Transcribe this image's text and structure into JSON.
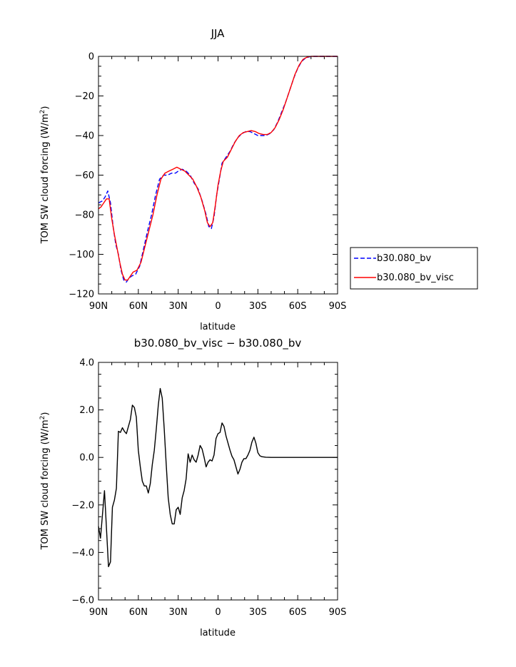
{
  "chart_data": [
    {
      "type": "line",
      "title": "JJA",
      "xlabel": "latitude",
      "ylabel_main": "TOM SW cloud forcing (W/m",
      "ylabel_sup": "2",
      "ylabel_close": ")",
      "xlim": [
        90,
        -90
      ],
      "ylim": [
        -120,
        0
      ],
      "x_ticks": [
        90,
        60,
        30,
        0,
        -30,
        -60,
        -90
      ],
      "x_tick_labels": [
        "90N",
        "60N",
        "30N",
        "0",
        "30S",
        "60S",
        "90S"
      ],
      "y_ticks": [
        -120,
        -100,
        -80,
        -60,
        -40,
        -20,
        0
      ],
      "y_tick_labels": [
        "−120",
        "−100",
        "−80",
        "−60",
        "−40",
        "−20",
        "0"
      ],
      "legend_position": "right",
      "series": [
        {
          "name": "b30.080_bv",
          "color": "#0000ff",
          "dash": "dashed",
          "points": [
            [
              90,
              -74
            ],
            [
              87,
              -73
            ],
            [
              85,
              -71
            ],
            [
              83,
              -68
            ],
            [
              81,
              -74
            ],
            [
              79,
              -86
            ],
            [
              77,
              -95
            ],
            [
              75,
              -100
            ],
            [
              73,
              -108
            ],
            [
              71,
              -113
            ],
            [
              69,
              -114
            ],
            [
              67,
              -112
            ],
            [
              65,
              -111
            ],
            [
              62,
              -110
            ],
            [
              59,
              -106
            ],
            [
              56,
              -97
            ],
            [
              53,
              -88
            ],
            [
              50,
              -80
            ],
            [
              47,
              -70
            ],
            [
              44,
              -62
            ],
            [
              41,
              -60
            ],
            [
              38,
              -60
            ],
            [
              35,
              -59
            ],
            [
              32,
              -59
            ],
            [
              30,
              -58
            ],
            [
              27,
              -57
            ],
            [
              24,
              -58
            ],
            [
              21,
              -60
            ],
            [
              18,
              -64
            ],
            [
              15,
              -67
            ],
            [
              12,
              -73
            ],
            [
              9,
              -80
            ],
            [
              7,
              -86
            ],
            [
              5,
              -87
            ],
            [
              3,
              -81
            ],
            [
              1,
              -70
            ],
            [
              -1,
              -62
            ],
            [
              -3,
              -54
            ],
            [
              -6,
              -51
            ],
            [
              -9,
              -48
            ],
            [
              -12,
              -44
            ],
            [
              -15,
              -41
            ],
            [
              -18,
              -39
            ],
            [
              -21,
              -38
            ],
            [
              -24,
              -38
            ],
            [
              -27,
              -39
            ],
            [
              -30,
              -40
            ],
            [
              -33,
              -40
            ],
            [
              -36,
              -40
            ],
            [
              -39,
              -39
            ],
            [
              -42,
              -37
            ],
            [
              -45,
              -33
            ],
            [
              -48,
              -28
            ],
            [
              -51,
              -23
            ],
            [
              -54,
              -17
            ],
            [
              -57,
              -11
            ],
            [
              -60,
              -6
            ],
            [
              -63,
              -2.5
            ],
            [
              -66,
              -0.8
            ],
            [
              -69,
              -0.2
            ],
            [
              -72,
              0
            ],
            [
              -80,
              0
            ],
            [
              -90,
              0
            ]
          ]
        },
        {
          "name": "b30.080_bv_visc",
          "color": "#ff0000",
          "dash": "solid",
          "points": [
            [
              90,
              -77
            ],
            [
              88,
              -76
            ],
            [
              86,
              -74
            ],
            [
              84,
              -72
            ],
            [
              82,
              -72
            ],
            [
              80,
              -82
            ],
            [
              78,
              -90
            ],
            [
              76,
              -97
            ],
            [
              74,
              -104
            ],
            [
              72,
              -110
            ],
            [
              70,
              -113
            ],
            [
              68,
              -113
            ],
            [
              66,
              -111
            ],
            [
              64,
              -109
            ],
            [
              61,
              -108
            ],
            [
              58,
              -104
            ],
            [
              55,
              -96
            ],
            [
              52,
              -88
            ],
            [
              49,
              -80
            ],
            [
              46,
              -70
            ],
            [
              43,
              -62
            ],
            [
              40,
              -59
            ],
            [
              37,
              -58
            ],
            [
              34,
              -57
            ],
            [
              31,
              -56
            ],
            [
              28,
              -57
            ],
            [
              25,
              -58
            ],
            [
              22,
              -60
            ],
            [
              19,
              -62
            ],
            [
              16,
              -66
            ],
            [
              13,
              -71
            ],
            [
              10,
              -78
            ],
            [
              8,
              -84
            ],
            [
              6,
              -86
            ],
            [
              4,
              -84
            ],
            [
              2,
              -75
            ],
            [
              0,
              -65
            ],
            [
              -2,
              -58
            ],
            [
              -4,
              -53
            ],
            [
              -7,
              -51
            ],
            [
              -10,
              -47
            ],
            [
              -13,
              -43
            ],
            [
              -16,
              -40
            ],
            [
              -19,
              -38.5
            ],
            [
              -22,
              -38
            ],
            [
              -25,
              -37.5
            ],
            [
              -28,
              -38
            ],
            [
              -31,
              -39
            ],
            [
              -34,
              -39.5
            ],
            [
              -37,
              -39.5
            ],
            [
              -40,
              -38.5
            ],
            [
              -43,
              -36
            ],
            [
              -46,
              -32
            ],
            [
              -49,
              -27
            ],
            [
              -52,
              -21
            ],
            [
              -55,
              -15
            ],
            [
              -58,
              -9
            ],
            [
              -61,
              -4.5
            ],
            [
              -64,
              -1.5
            ],
            [
              -67,
              -0.4
            ],
            [
              -70,
              0
            ],
            [
              -80,
              0
            ],
            [
              -90,
              0
            ]
          ]
        }
      ]
    },
    {
      "type": "line",
      "title": "b30.080_bv_visc − b30.080_bv",
      "xlabel": "latitude",
      "ylabel_main": "TOM SW cloud forcing (W/m",
      "ylabel_sup": "2",
      "ylabel_close": ")",
      "xlim": [
        90,
        -90
      ],
      "ylim": [
        -6,
        4
      ],
      "x_ticks": [
        90,
        60,
        30,
        0,
        -30,
        -60,
        -90
      ],
      "x_tick_labels": [
        "90N",
        "60N",
        "30N",
        "0",
        "30S",
        "60S",
        "90S"
      ],
      "y_ticks": [
        -6,
        -4,
        -2,
        0,
        2,
        4
      ],
      "y_tick_labels": [
        "−6.0",
        "−4.0",
        "−2.0",
        "0.0",
        "2.0",
        "4.0"
      ],
      "series": [
        {
          "color": "#000000",
          "dash": "solid",
          "points": [
            [
              90,
              -2.9
            ],
            [
              88.5,
              -3.4
            ],
            [
              87,
              -2.4
            ],
            [
              85.5,
              -1.4
            ],
            [
              84,
              -3.0
            ],
            [
              82.5,
              -4.6
            ],
            [
              81,
              -4.4
            ],
            [
              79.5,
              -2.1
            ],
            [
              78,
              -1.8
            ],
            [
              76.5,
              -1.3
            ],
            [
              75,
              1.1
            ],
            [
              73.5,
              1.05
            ],
            [
              72,
              1.25
            ],
            [
              70.5,
              1.1
            ],
            [
              69,
              1.0
            ],
            [
              67.5,
              1.3
            ],
            [
              66,
              1.6
            ],
            [
              64.5,
              2.2
            ],
            [
              63,
              2.1
            ],
            [
              61.5,
              1.7
            ],
            [
              60,
              0.3
            ],
            [
              58.5,
              -0.4
            ],
            [
              57,
              -1.0
            ],
            [
              55.5,
              -1.2
            ],
            [
              54,
              -1.2
            ],
            [
              52.5,
              -1.5
            ],
            [
              51,
              -1.1
            ],
            [
              49.5,
              -0.3
            ],
            [
              48,
              0.3
            ],
            [
              46.5,
              1.2
            ],
            [
              45,
              2.2
            ],
            [
              43.5,
              2.9
            ],
            [
              42,
              2.5
            ],
            [
              40.5,
              1.2
            ],
            [
              39,
              -0.3
            ],
            [
              37.5,
              -1.7
            ],
            [
              36,
              -2.4
            ],
            [
              34.5,
              -2.8
            ],
            [
              33,
              -2.8
            ],
            [
              31.5,
              -2.2
            ],
            [
              30,
              -2.1
            ],
            [
              28.5,
              -2.4
            ],
            [
              27,
              -1.7
            ],
            [
              25.5,
              -1.4
            ],
            [
              24,
              -0.9
            ],
            [
              22.5,
              0.15
            ],
            [
              21,
              -0.2
            ],
            [
              19.5,
              0.1
            ],
            [
              18,
              -0.1
            ],
            [
              16.5,
              -0.2
            ],
            [
              15,
              0.1
            ],
            [
              13.5,
              0.5
            ],
            [
              12,
              0.35
            ],
            [
              10.5,
              0.0
            ],
            [
              9,
              -0.4
            ],
            [
              7.5,
              -0.2
            ],
            [
              6,
              -0.1
            ],
            [
              4.5,
              -0.15
            ],
            [
              3,
              0.1
            ],
            [
              1.5,
              0.8
            ],
            [
              0,
              1.0
            ],
            [
              -1.5,
              1.05
            ],
            [
              -3,
              1.45
            ],
            [
              -4.5,
              1.3
            ],
            [
              -6,
              0.9
            ],
            [
              -7.5,
              0.6
            ],
            [
              -9,
              0.3
            ],
            [
              -10.5,
              0.05
            ],
            [
              -12,
              -0.1
            ],
            [
              -13.5,
              -0.4
            ],
            [
              -15,
              -0.7
            ],
            [
              -16.5,
              -0.5
            ],
            [
              -18,
              -0.2
            ],
            [
              -19.5,
              -0.05
            ],
            [
              -21,
              -0.05
            ],
            [
              -22.5,
              0.1
            ],
            [
              -24,
              0.3
            ],
            [
              -25.5,
              0.65
            ],
            [
              -27,
              0.85
            ],
            [
              -28.5,
              0.6
            ],
            [
              -30,
              0.2
            ],
            [
              -31.5,
              0.07
            ],
            [
              -33,
              0.03
            ],
            [
              -36,
              0.01
            ],
            [
              -40,
              0.0
            ],
            [
              -50,
              0.0
            ],
            [
              -60,
              0.0
            ],
            [
              -70,
              0.0
            ],
            [
              -80,
              0.0
            ],
            [
              -90,
              0.0
            ]
          ]
        }
      ]
    }
  ]
}
